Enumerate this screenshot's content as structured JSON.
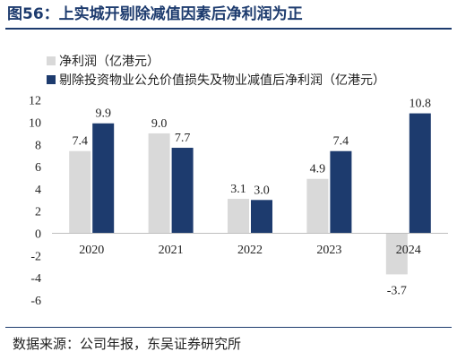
{
  "title": "图56：上实城开剔除减值因素后净利润为正",
  "source": "数据来源：公司年报，东吴证券研究所",
  "colors": {
    "net_profit": "#d9d9d9",
    "adjusted": "#1d3b6e",
    "title": "#1d3b6e"
  },
  "chart_data": {
    "type": "bar",
    "categories": [
      "2020",
      "2021",
      "2022",
      "2023",
      "2024"
    ],
    "series": [
      {
        "name": "净利润（亿港元）",
        "values": [
          7.4,
          9.0,
          3.1,
          4.9,
          -3.7
        ],
        "color": "#d9d9d9"
      },
      {
        "name": "剔除投资物业公允价值损失及物业减值后净利润（亿港元）",
        "values": [
          9.9,
          7.7,
          3.0,
          7.4,
          10.8
        ],
        "color": "#1d3b6e"
      }
    ],
    "data_labels": [
      [
        "7.4",
        "9.0",
        "3.1",
        "4.9",
        "-3.7"
      ],
      [
        "9.9",
        "7.7",
        "3.0",
        "7.4",
        "10.8"
      ]
    ],
    "yticks": [
      -6,
      -4,
      -2,
      0,
      2,
      4,
      6,
      8,
      10,
      12
    ],
    "ylim": [
      -6,
      12
    ],
    "grid": false,
    "legend_position": "top-left"
  }
}
